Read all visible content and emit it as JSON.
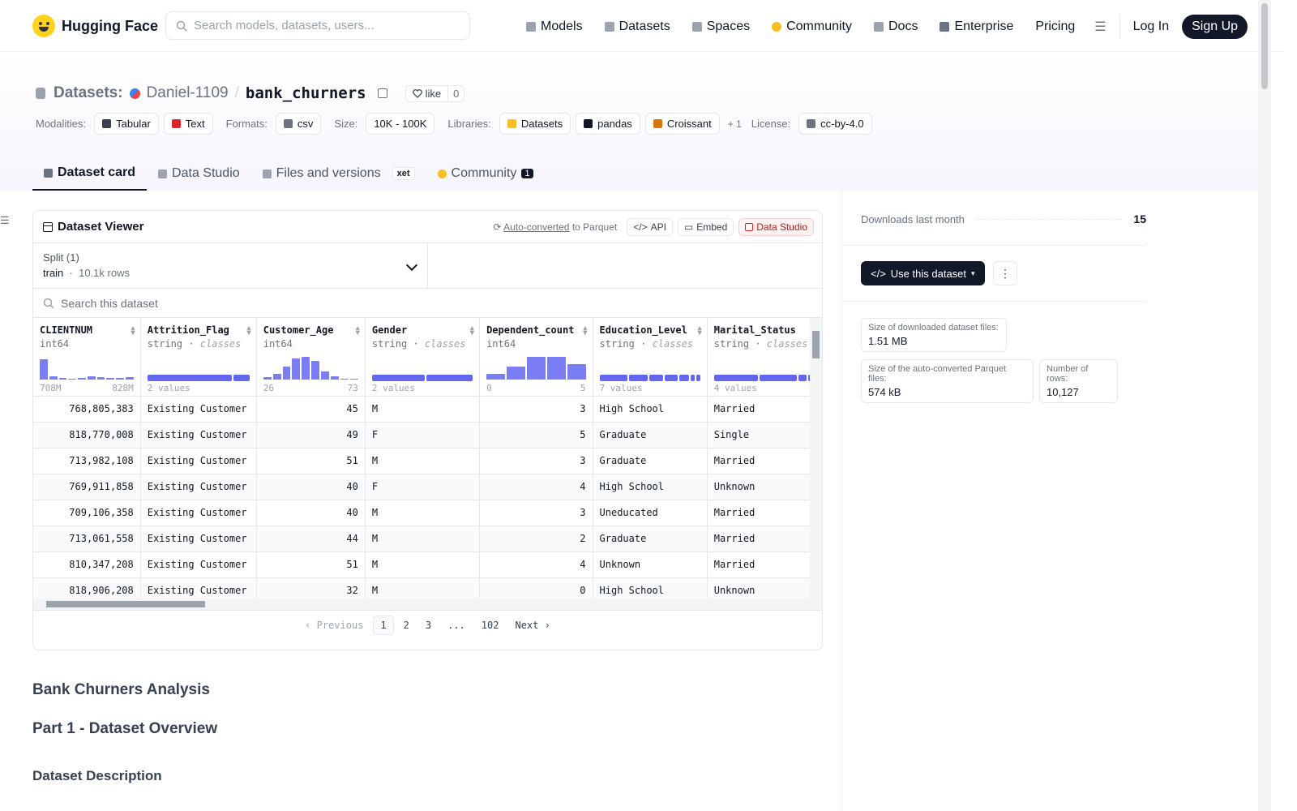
{
  "nav": {
    "brand": "Hugging Face",
    "search_placeholder": "Search models, datasets, users...",
    "links": [
      {
        "label": "Models",
        "icon": "cube-icon",
        "color": "#9ca3af"
      },
      {
        "label": "Datasets",
        "icon": "database-icon",
        "color": "#9ca3af"
      },
      {
        "label": "Spaces",
        "icon": "grid-icon",
        "color": "#9ca3af"
      },
      {
        "label": "Community",
        "icon": "community-icon",
        "color": "#fbbf24"
      },
      {
        "label": "Docs",
        "icon": "book-icon",
        "color": "#9ca3af"
      },
      {
        "label": "Enterprise",
        "icon": "enterprise-icon",
        "color": "#6b7280"
      },
      {
        "label": "Pricing",
        "icon": "",
        "color": ""
      }
    ],
    "login": "Log In",
    "signup": "Sign Up"
  },
  "header": {
    "section": "Datasets:",
    "owner": "Daniel-1109",
    "separator": "/",
    "repo": "bank_churners",
    "like_label": "like",
    "like_count": "0",
    "modalities_label": "Modalities:",
    "modalities": [
      "Tabular",
      "Text"
    ],
    "formats_label": "Formats:",
    "formats": [
      "csv"
    ],
    "size_label": "Size:",
    "size": "10K - 100K",
    "libraries_label": "Libraries:",
    "libraries": [
      "Datasets",
      "pandas",
      "Croissant"
    ],
    "libraries_more": "+ 1",
    "license_label": "License:",
    "license": "cc-by-4.0"
  },
  "tabs": [
    {
      "label": "Dataset card"
    },
    {
      "label": "Data Studio"
    },
    {
      "label": "Files and versions",
      "badge": "xet"
    },
    {
      "label": "Community",
      "count": "1"
    }
  ],
  "viewer": {
    "title": "Dataset Viewer",
    "auto_converted": "Auto-converted",
    "to_parquet": "to Parquet",
    "api": "API",
    "embed": "Embed",
    "studio": "Data Studio",
    "split_label": "Split (1)",
    "split_name": "train",
    "split_rows": "10.1k rows",
    "search_placeholder": "Search this dataset",
    "columns": [
      {
        "name": "CLIENTNUM",
        "type": "int64",
        "kind": "hist",
        "hist": [
          0.82,
          0.12,
          0.06,
          0.05,
          0.06,
          0.14,
          0.1,
          0.08,
          0.08,
          0.1
        ],
        "min": "708M",
        "max": "828M"
      },
      {
        "name": "Attrition_Flag",
        "type": "string",
        "classes": "classes",
        "kind": "cat",
        "segments": [
          0.84,
          0.16
        ],
        "values_label": "2 values"
      },
      {
        "name": "Customer_Age",
        "type": "int64",
        "kind": "hist",
        "hist": [
          0.1,
          0.25,
          0.55,
          0.88,
          0.95,
          0.78,
          0.33,
          0.15,
          0.05,
          0.05
        ],
        "min": "26",
        "max": "73"
      },
      {
        "name": "Gender",
        "type": "string",
        "classes": "classes",
        "kind": "cat",
        "segments": [
          0.53,
          0.47
        ],
        "values_label": "2 values"
      },
      {
        "name": "Dependent_count",
        "type": "int64",
        "kind": "hist",
        "hist": [
          0.25,
          0.55,
          0.92,
          0.95,
          0.62
        ],
        "min": "0",
        "max": "5"
      },
      {
        "name": "Education_Level",
        "type": "string",
        "classes": "classes",
        "kind": "cat",
        "segments": [
          0.31,
          0.2,
          0.15,
          0.15,
          0.1,
          0.05,
          0.04
        ],
        "values_label": "7 values"
      },
      {
        "name": "Marital_Status",
        "type": "string",
        "classes": "classes",
        "kind": "cat",
        "segments": [
          0.46,
          0.39,
          0.08,
          0.07
        ],
        "values_label": "4 values"
      }
    ],
    "rows": [
      [
        "768,805,383",
        "Existing Customer",
        "45",
        "M",
        "3",
        "High School",
        "Married"
      ],
      [
        "818,770,008",
        "Existing Customer",
        "49",
        "F",
        "5",
        "Graduate",
        "Single"
      ],
      [
        "713,982,108",
        "Existing Customer",
        "51",
        "M",
        "3",
        "Graduate",
        "Married"
      ],
      [
        "769,911,858",
        "Existing Customer",
        "40",
        "F",
        "4",
        "High School",
        "Unknown"
      ],
      [
        "709,106,358",
        "Existing Customer",
        "40",
        "M",
        "3",
        "Uneducated",
        "Married"
      ],
      [
        "713,061,558",
        "Existing Customer",
        "44",
        "M",
        "2",
        "Graduate",
        "Married"
      ],
      [
        "810,347,208",
        "Existing Customer",
        "51",
        "M",
        "4",
        "Unknown",
        "Married"
      ],
      [
        "818,906,208",
        "Existing Customer",
        "32",
        "M",
        "0",
        "High School",
        "Unknown"
      ]
    ],
    "pager": {
      "prev": "Previous",
      "pages": [
        "1",
        "2",
        "3",
        "...",
        "102"
      ],
      "next": "Next",
      "current": "1"
    }
  },
  "content": {
    "h_title": "Bank Churners Analysis",
    "h_part1": "Part 1 - Dataset Overview",
    "h_desc": "Dataset Description"
  },
  "sidebar": {
    "downloads_label": "Downloads last month",
    "downloads": "15",
    "use_button": "Use this dataset",
    "size_dl_label": "Size of downloaded dataset files:",
    "size_dl": "1.51 MB",
    "size_parquet_label": "Size of the auto-converted Parquet files:",
    "size_parquet": "574 kB",
    "rows_label": "Number of rows:",
    "rows": "10,127"
  }
}
